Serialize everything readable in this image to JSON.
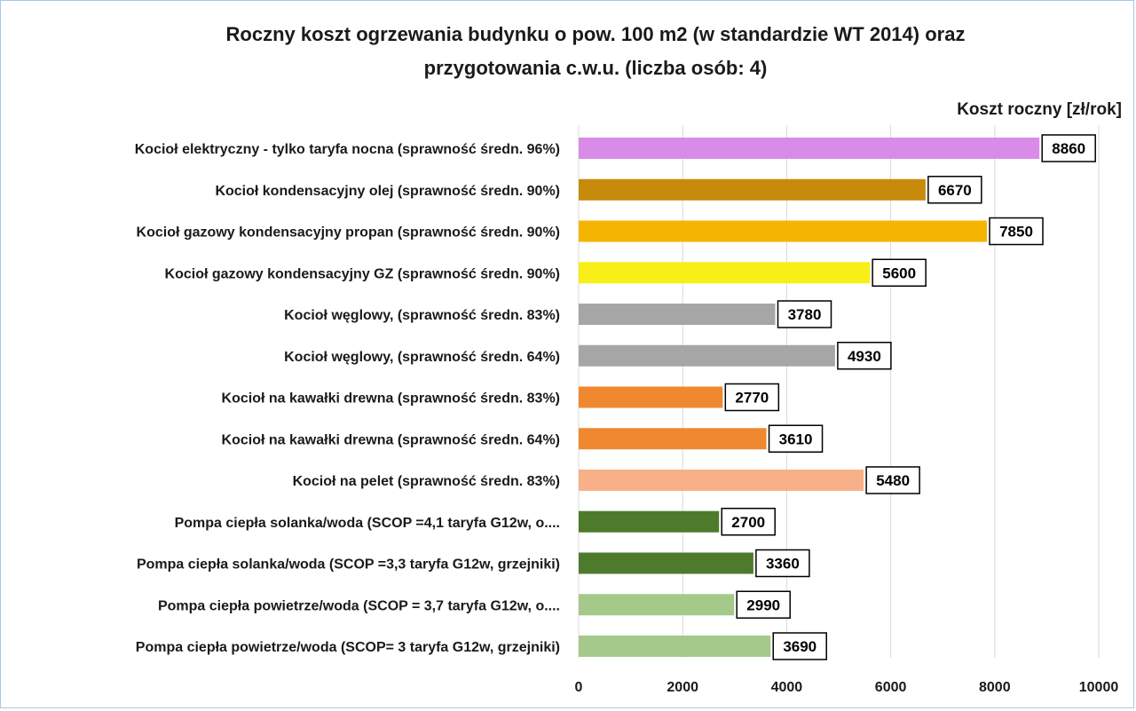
{
  "chart_data": {
    "type": "bar",
    "orientation": "horizontal",
    "title_lines": [
      "Roczny koszt  ogrzewania budynku o pow. 100 m2 (w standardzie  WT 2014) oraz",
      "przygotowania  c.w.u. (liczba osób: 4)"
    ],
    "value_axis_label": "Koszt roczny [zł/rok]",
    "xlim": [
      0,
      10000
    ],
    "x_ticks": [
      0,
      2000,
      4000,
      6000,
      8000,
      10000
    ],
    "grid": "vertical",
    "categories": [
      "Kocioł  elektryczny - tylko taryfa nocna (sprawność średn. 96%)",
      "Kocioł  kondensacyjny olej (sprawność średn. 90%)",
      "Kocioł gazowy kondensacyjny propan (sprawność średn. 90%)",
      "Kocioł gazowy kondensacyjny GZ (sprawność średn. 90%)",
      "Kocioł węglowy,  (sprawność średn. 83%)",
      "Kocioł węglowy,  (sprawność średn. 64%)",
      "Kocioł na kawałki drewna (sprawność średn. 83%)",
      "Kocioł na kawałki drewna (sprawność średn. 64%)",
      "Kocioł na pelet (sprawność średn. 83%)",
      "Pompa ciepła solanka/woda (SCOP =4,1 taryfa G12w, o....",
      "Pompa ciepła solanka/woda (SCOP =3,3 taryfa G12w, grzejniki)",
      "Pompa ciepła powietrze/woda (SCOP = 3,7 taryfa G12w, o....",
      "Pompa ciepła powietrze/woda (SCOP= 3 taryfa G12w, grzejniki)"
    ],
    "values": [
      8860,
      6670,
      7850,
      5600,
      3780,
      4930,
      2770,
      3610,
      5480,
      2700,
      3360,
      2990,
      3690
    ],
    "bar_colors": [
      "#d88ce8",
      "#c88a0a",
      "#f5b400",
      "#f8ee18",
      "#a6a6a6",
      "#a6a6a6",
      "#f08830",
      "#f08830",
      "#f8b088",
      "#4e7a2c",
      "#4e7a2c",
      "#a4c98a",
      "#a4c98a"
    ]
  }
}
